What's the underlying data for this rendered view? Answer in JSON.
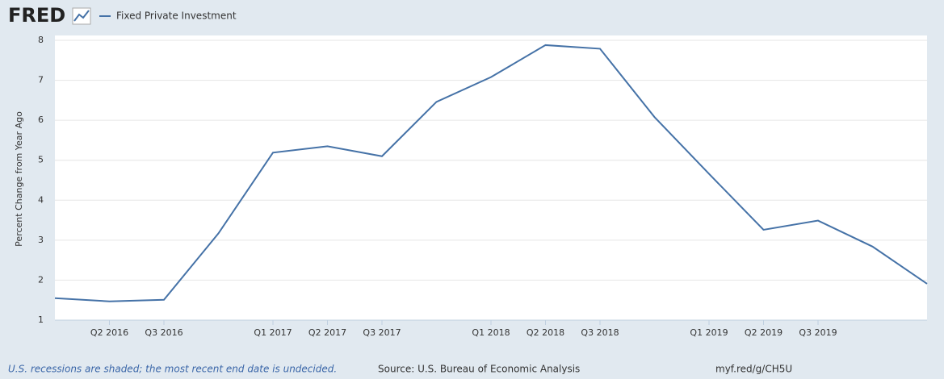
{
  "brand": "FRED",
  "chart_data": {
    "type": "line",
    "y_label": "Percent Change from Year Ago",
    "categories": [
      null,
      "Q2 2016",
      "Q3 2016",
      null,
      "Q1 2017",
      "Q2 2017",
      "Q3 2017",
      null,
      "Q1 2018",
      "Q2 2018",
      "Q3 2018",
      null,
      "Q1 2019",
      "Q2 2019",
      "Q3 2019",
      null,
      null
    ],
    "series": [
      {
        "name": "Fixed Private Investment",
        "color": "#4572a7",
        "values": [
          1.55,
          1.47,
          1.51,
          3.17,
          5.19,
          5.35,
          5.1,
          6.46,
          7.08,
          7.88,
          7.79,
          6.08,
          4.66,
          3.26,
          3.49,
          2.84,
          1.91
        ]
      }
    ],
    "ylim": [
      1,
      8
    ],
    "yticks": [
      1,
      2,
      3,
      4,
      5,
      6,
      7,
      8
    ],
    "grid": true
  },
  "footer": {
    "note": "U.S. recessions are shaded; the most recent end date is undecided.",
    "source": "Source: U.S. Bureau of Economic Analysis",
    "link": "myf.red/g/CH5U"
  }
}
